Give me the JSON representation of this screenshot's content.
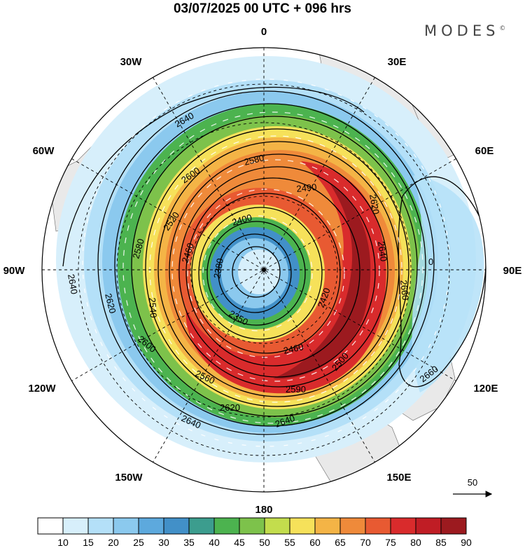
{
  "header": {
    "title": "03/07/2025  00 UTC  + 096 hrs",
    "brand": "MODES",
    "brand_mark": "©"
  },
  "map": {
    "projection": "polar stereographic (south pole)",
    "longitude_labels": {
      "top": "0",
      "top_right": "30E",
      "right_upper": "60E",
      "right": "90E",
      "right_lower": "120E",
      "bottom_right": "150E",
      "bottom": "180",
      "bottom_left": "150W",
      "left_lower": "120W",
      "left": "90W",
      "left_upper": "60W",
      "top_left": "30W"
    },
    "contour_labels": [
      "2640",
      "2580",
      "2600",
      "2490",
      "2620",
      "2520",
      "2400",
      "2580",
      "2460",
      "2640",
      "0",
      "2380",
      "2540",
      "2640",
      "2660",
      "2620",
      "2350",
      "2420",
      "2600",
      "2460",
      "2560",
      "2660",
      "2620",
      "2640",
      "2640",
      "2590",
      "2500"
    ],
    "vector_reference": "50"
  },
  "colorbar": {
    "ticks": [
      "10",
      "15",
      "20",
      "25",
      "30",
      "35",
      "40",
      "45",
      "50",
      "55",
      "60",
      "65",
      "70",
      "75",
      "80",
      "85",
      "90"
    ],
    "colors": [
      "#ffffff",
      "#d7effb",
      "#b4e0f8",
      "#8bc9ee",
      "#5da9dd",
      "#4290c8",
      "#3c9d8e",
      "#4cb34f",
      "#7dc24b",
      "#c3dd4d",
      "#f6e15a",
      "#f4b446",
      "#ef8a3a",
      "#e85a32",
      "#d92b2c",
      "#c01d25",
      "#9c1a1f"
    ]
  }
}
